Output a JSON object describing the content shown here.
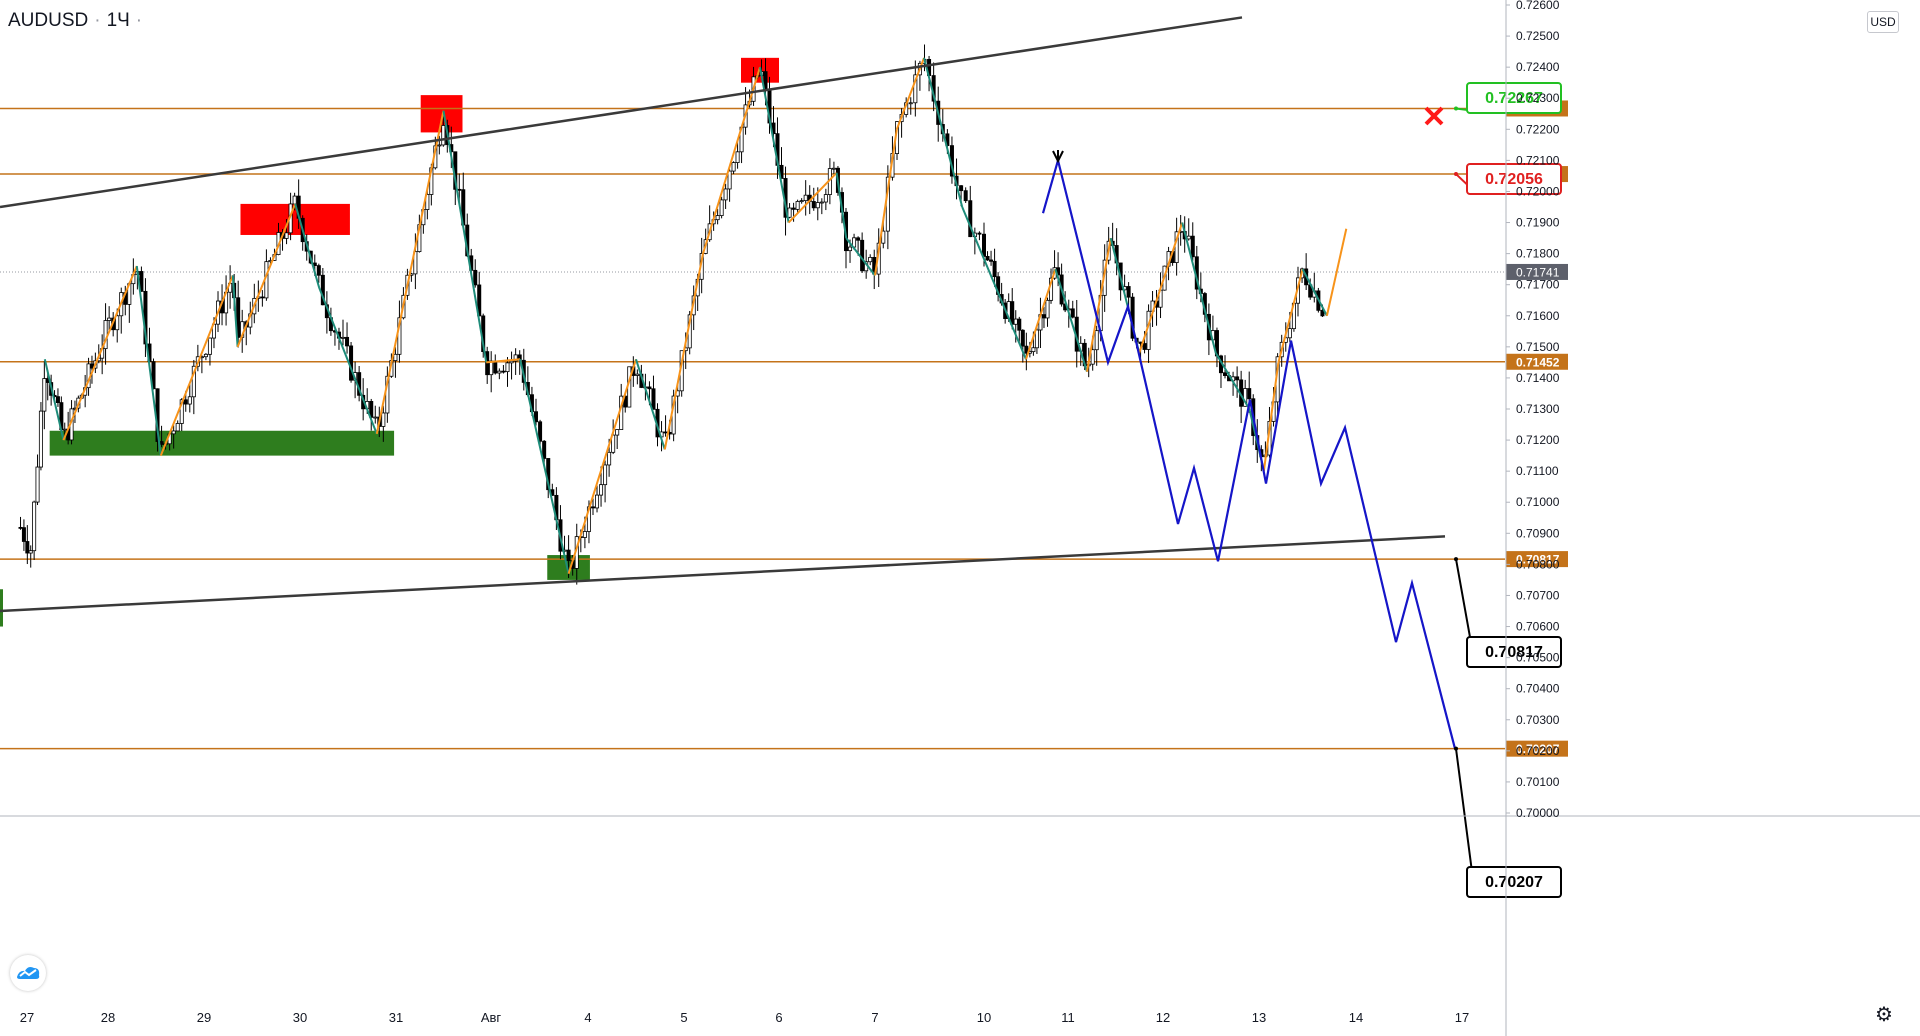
{
  "header": {
    "symbol": "AUDUSD",
    "interval": "1Ч",
    "separator": "·"
  },
  "currency_button": "USD",
  "chart_data": {
    "type": "candlestick",
    "title": "AUDUSD · 1Ч",
    "yaxis": {
      "range": [
        0.7,
        0.726
      ],
      "ticks": [
        "0.70000",
        "0.70100",
        "0.70200",
        "0.70300",
        "0.70400",
        "0.70500",
        "0.70600",
        "0.70700",
        "0.70800",
        "0.70900",
        "0.71000",
        "0.71100",
        "0.71200",
        "0.71300",
        "0.71400",
        "0.71500",
        "0.71600",
        "0.71700",
        "0.71800",
        "0.71900",
        "0.72000",
        "0.72100",
        "0.72200",
        "0.72300",
        "0.72400",
        "0.72500",
        "0.72600"
      ]
    },
    "xaxis": {
      "labels": [
        "27",
        "28",
        "29",
        "30",
        "31",
        "Авг",
        "4",
        "5",
        "6",
        "7",
        "10",
        "11",
        "12",
        "13",
        "14",
        "17"
      ]
    },
    "current_price": "0.71741",
    "levels": [
      {
        "price": 0.72267,
        "label": "0.72267"
      },
      {
        "price": 0.72056,
        "label": "0.72056"
      },
      {
        "price": 0.71452,
        "label": "0.71452"
      },
      {
        "price": 0.70817,
        "label": "0.70817"
      },
      {
        "price": 0.70207,
        "label": "0.70207"
      }
    ],
    "callouts": [
      {
        "label": "0.72267",
        "color": "#22c022",
        "price": 0.72267,
        "x_label": "12"
      },
      {
        "label": "0.72056",
        "color": "#e02020",
        "price": 0.72056,
        "x_label": "12"
      },
      {
        "label": "0.70817",
        "color": "#000000",
        "price": 0.70817,
        "x_label": "12"
      },
      {
        "label": "0.70207",
        "color": "#000000",
        "price": 0.70207,
        "x_label": "12"
      }
    ],
    "zones": [
      {
        "kind": "resistance",
        "color": "#ff0000",
        "from": "29",
        "to": "30",
        "price_low": 0.7186,
        "price_high": 0.7196
      },
      {
        "kind": "resistance",
        "color": "#ff0000",
        "from": "31",
        "to": "31",
        "price_low": 0.7219,
        "price_high": 0.7231
      },
      {
        "kind": "resistance",
        "color": "#ff0000",
        "from": "5",
        "to": "6",
        "price_low": 0.7235,
        "price_high": 0.7243
      },
      {
        "kind": "support",
        "color": "#2e7d1e",
        "from": "27",
        "to": "30",
        "price_low": 0.7115,
        "price_high": 0.7123
      },
      {
        "kind": "support",
        "color": "#2e7d1e",
        "from": "Авг",
        "to": "4",
        "price_low": 0.7075,
        "price_high": 0.7083
      }
    ],
    "trendlines": [
      {
        "name": "upper-channel",
        "from": {
          "x_label": "27",
          "price": 0.7195
        },
        "to": {
          "x_label": "7",
          "price": 0.7256
        }
      },
      {
        "name": "lower-channel",
        "from": {
          "x_label": "27",
          "price": 0.7065
        },
        "to": {
          "x_label": "12",
          "price": 0.7089
        }
      }
    ],
    "forecast_path": [
      0.7193,
      0.721,
      0.7145,
      0.7163,
      0.7093,
      0.7111,
      0.7081,
      0.7133,
      0.7106,
      0.7152,
      0.7106,
      0.7124,
      0.7055,
      0.7074,
      0.70207
    ],
    "zigzag_colors": {
      "up": "#f7931a",
      "down": "#1e8c7a"
    },
    "forecast_color": "#1515c8",
    "level_color": "#c4731a",
    "trendline_color": "#3a3a3a"
  }
}
